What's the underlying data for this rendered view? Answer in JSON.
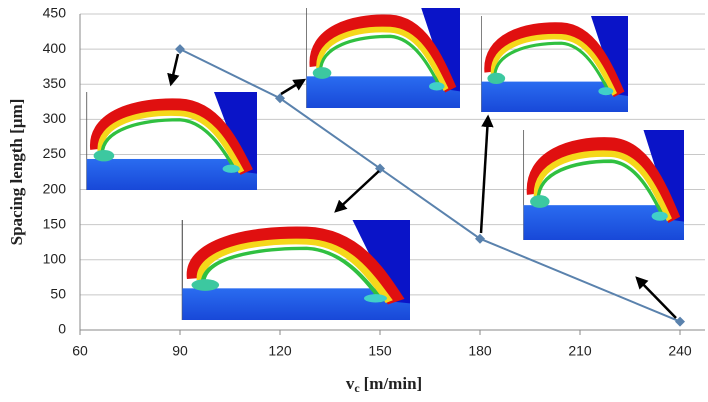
{
  "chart_data": {
    "type": "line",
    "x": [
      90,
      120,
      150,
      180,
      240
    ],
    "series": [
      {
        "color": "#5a82ad",
        "values": [
          400,
          330,
          230,
          130,
          12
        ]
      }
    ],
    "xlim": [
      60,
      240
    ],
    "xticks": [
      60,
      90,
      120,
      150,
      180,
      210,
      240
    ],
    "ylim": [
      0,
      450
    ],
    "yticks": [
      0,
      50,
      100,
      150,
      200,
      250,
      300,
      350,
      400,
      450
    ],
    "grid": true,
    "ylabel": "Spacing length [µm]",
    "xlabel": {
      "main": "v",
      "sub": "c",
      "unit": "[m/min]"
    }
  }
}
